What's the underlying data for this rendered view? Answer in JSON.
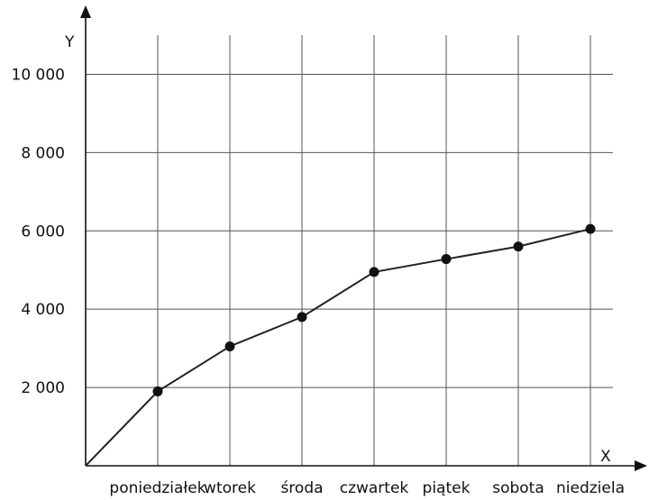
{
  "chart_data": {
    "type": "line",
    "categories": [
      "poniedziałek",
      "wtorek",
      "środa",
      "czwartek",
      "piątek",
      "sobota",
      "niedziela"
    ],
    "series": [
      {
        "values": [
          1900,
          3050,
          3800,
          4950,
          5280,
          5600,
          6050
        ]
      }
    ],
    "line_starts_at_origin": true,
    "title": "",
    "xlabel": "X",
    "ylabel": "Y",
    "ylim": [
      0,
      11000
    ],
    "yticks": [
      2000,
      4000,
      6000,
      8000,
      10000
    ],
    "ytick_labels": [
      "2 000",
      "4 000",
      "6 000",
      "8 000",
      "10 000"
    ],
    "grid": true,
    "legend": "none"
  }
}
